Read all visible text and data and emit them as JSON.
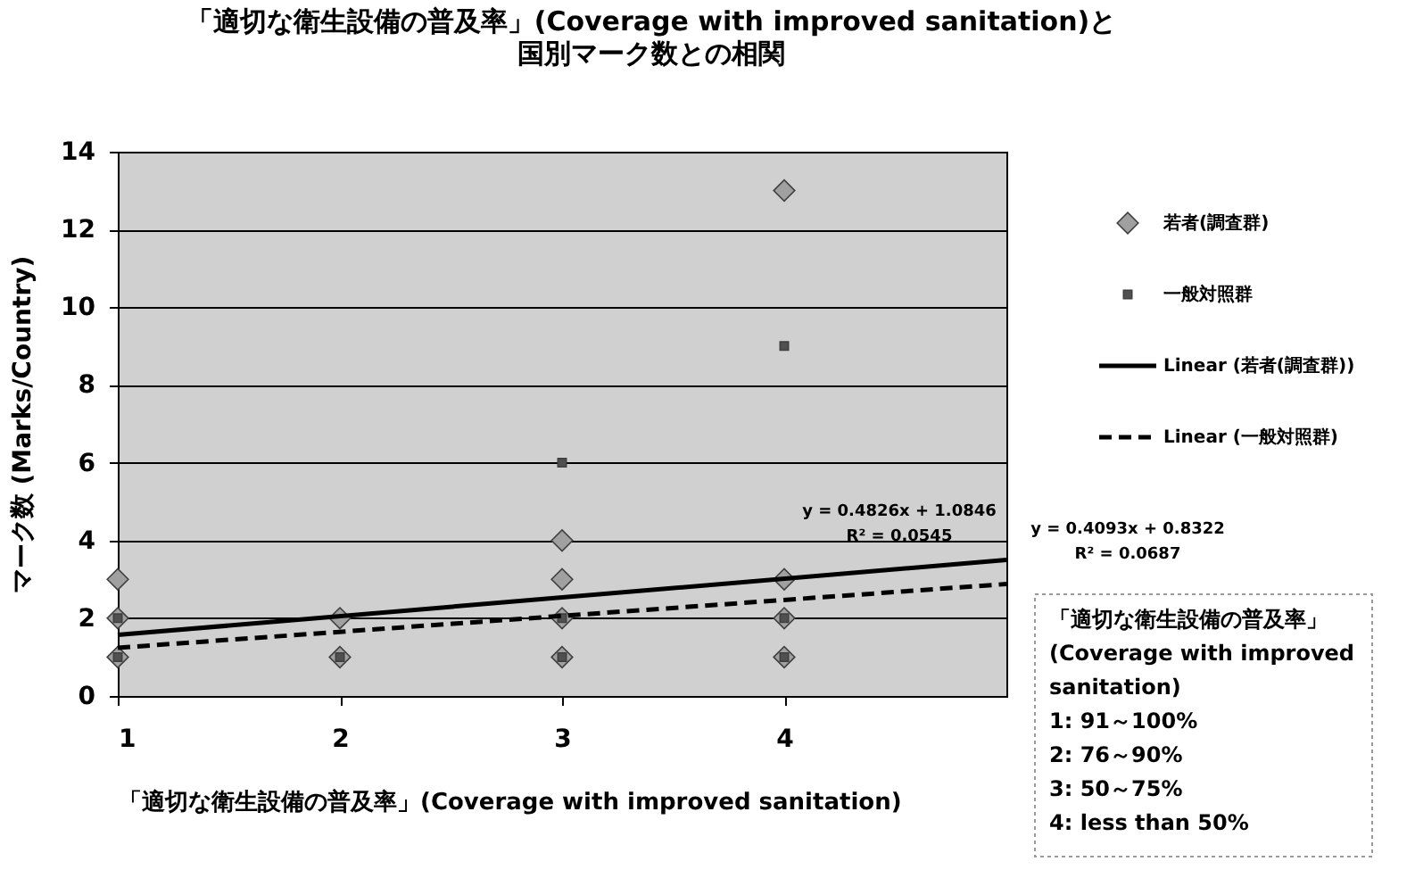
{
  "chart_data": {
    "type": "scatter",
    "title": "「適切な衛生設備の普及率」(Coverage with improved sanitation)と",
    "subtitle": "国別マーク数との相関",
    "xlabel": "「適切な衛生設備の普及率」(Coverage with improved sanitation)",
    "ylabel": "マーク数 (Marks/Country)",
    "xlim": [
      1,
      5
    ],
    "xticks": [
      1,
      2,
      3,
      4
    ],
    "ylim": [
      0,
      14
    ],
    "yticks": [
      0,
      2,
      4,
      6,
      8,
      10,
      12,
      14
    ],
    "grid": "y",
    "legend": "right",
    "series": [
      {
        "name": "若者(調査群)",
        "marker": "diamond",
        "color": "#a0a0a0",
        "x": [
          1,
          1,
          1,
          2,
          2,
          3,
          3,
          3,
          3,
          4,
          4,
          4,
          4
        ],
        "values": [
          3,
          2,
          1,
          2,
          1,
          4,
          3,
          2,
          1,
          13,
          3,
          2,
          1
        ]
      },
      {
        "name": "一般対照群",
        "marker": "square",
        "color": "#505050",
        "x": [
          1,
          1,
          2,
          3,
          3,
          3,
          4,
          4,
          4
        ],
        "values": [
          2,
          1,
          1,
          6,
          2,
          1,
          9,
          2,
          1
        ]
      },
      {
        "name": "Linear (若者(調査群))",
        "type": "line",
        "marker": "none",
        "line_style": "solid",
        "color": "#000000",
        "x": [
          1,
          5
        ],
        "values": [
          1.57,
          3.5
        ]
      },
      {
        "name": "Linear (一般対照群)",
        "type": "line",
        "marker": "none",
        "line_style": "dashed",
        "color": "#000000",
        "x": [
          1,
          5
        ],
        "values": [
          1.24,
          2.88
        ]
      }
    ],
    "annotations": [
      "y = 0.4826x + 1.0846",
      "R² = 0.0545",
      "y = 0.4093x + 0.8322",
      "R² = 0.0687",
      "「適切な衛生設備の普及率」",
      "(Coverage with improved",
      "sanitation)",
      "1:  91～100%",
      "2:  76～90%",
      "3:  50～75%",
      "4:  less than 50%"
    ]
  }
}
